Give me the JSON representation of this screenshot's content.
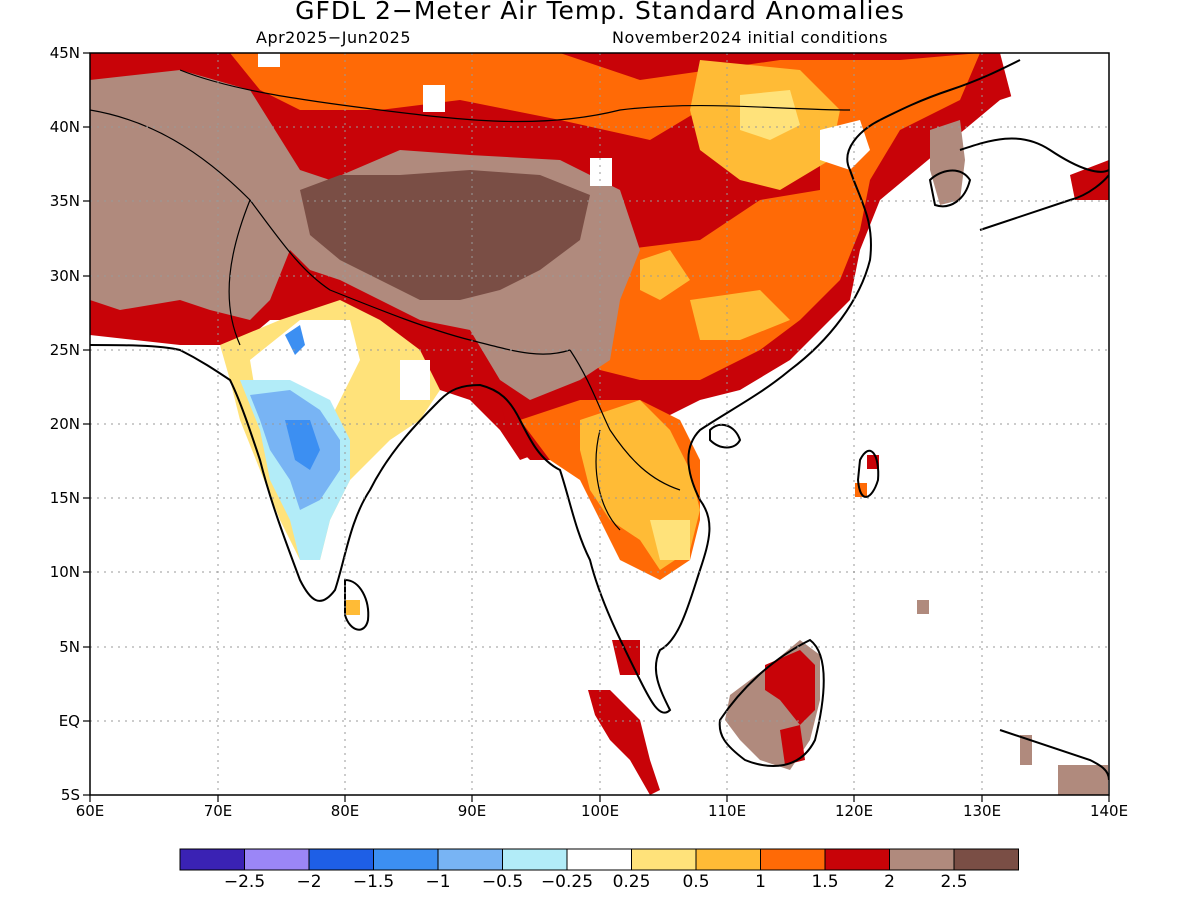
{
  "title": "GFDL 2−Meter Air Temp. Standard Anomalies",
  "subtitle_left": "Apr2025−Jun2025",
  "subtitle_right": "November2024 initial conditions",
  "lat_labels": [
    "45N",
    "40N",
    "35N",
    "30N",
    "25N",
    "20N",
    "15N",
    "10N",
    "5N",
    "EQ",
    "5S"
  ],
  "lon_labels": [
    "60E",
    "70E",
    "80E",
    "90E",
    "100E",
    "110E",
    "120E",
    "130E",
    "140E"
  ],
  "colorbar": {
    "colors": [
      "#3a22b4",
      "#9b86f7",
      "#1e5fe6",
      "#3c8ff2",
      "#78b4f4",
      "#b2ecf8",
      "#ffffff",
      "#ffe27a",
      "#ffbb36",
      "#ff6a06",
      "#c80308",
      "#b08a7d",
      "#7a4e45"
    ],
    "labels": [
      "−2.5",
      "−2",
      "−1.5",
      "−1",
      "−0.5",
      "−0.25",
      "0.25",
      "0.5",
      "1",
      "1.5",
      "2",
      "2.5"
    ]
  },
  "chart_data": {
    "type": "heatmap",
    "variable": "2-meter air temperature standard anomaly",
    "region": {
      "lon_range": [
        60,
        140
      ],
      "lat_range": [
        -5,
        45
      ]
    },
    "dominant_values": [
      {
        "region": "Tibetan Plateau",
        "anomaly": "> 2.5"
      },
      {
        "region": "Himalaya / Pakistan / Iran",
        "anomaly": "2 to 2.5"
      },
      {
        "region": "Central & Eastern China",
        "anomaly": "1 to 2"
      },
      {
        "region": "Mongolia",
        "anomaly": "0.5 to 1.5"
      },
      {
        "region": "Indochina",
        "anomaly": "0.5 to 1.5"
      },
      {
        "region": "Central & Southern India",
        "anomaly": "-1.5 to 0.25"
      },
      {
        "region": "Borneo",
        "anomaly": "2 to 2.5"
      },
      {
        "region": "Sumatra / Malay Peninsula",
        "anomaly": "2 to 2.5"
      }
    ]
  }
}
